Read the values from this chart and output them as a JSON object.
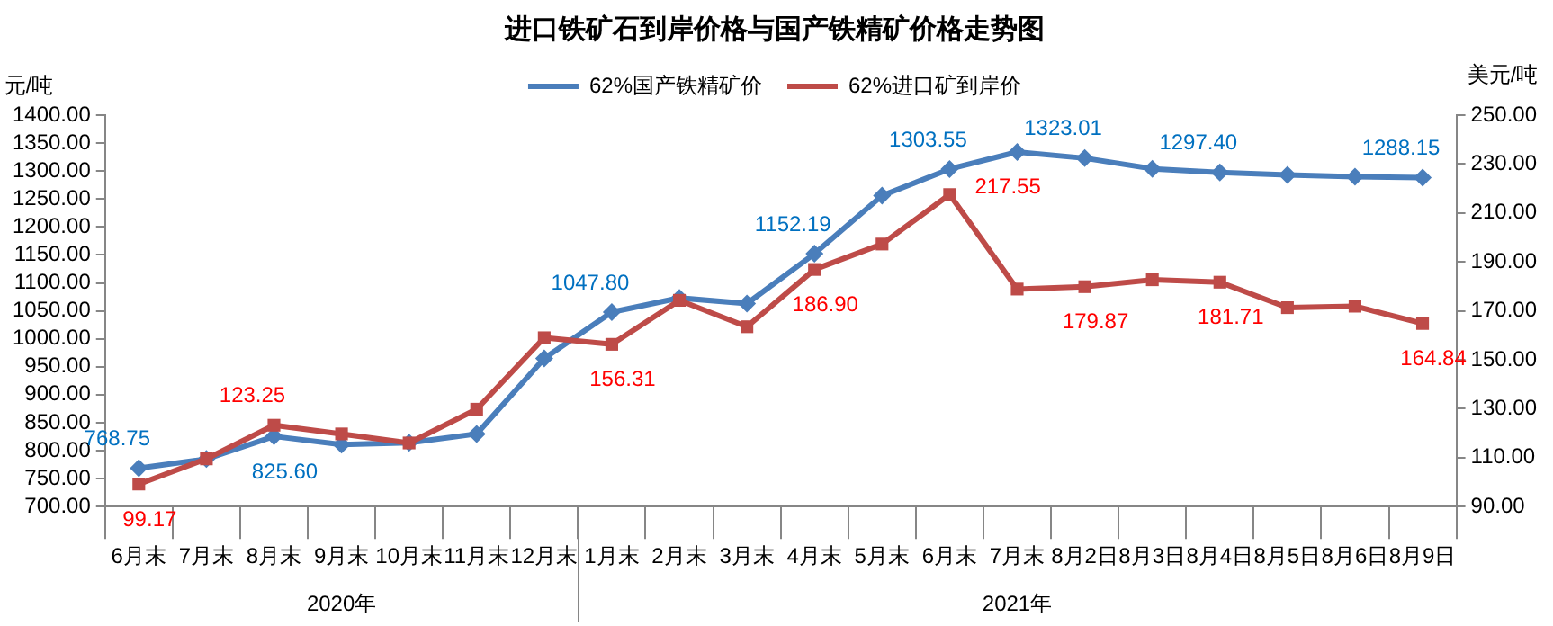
{
  "chart_data": {
    "type": "line",
    "title": "进口铁矿石到岸价格与国产铁精矿价格走势图",
    "ylabel": "元/吨",
    "y2label": "美元/吨",
    "categories": [
      "6月末",
      "7月末",
      "8月末",
      "9月末",
      "10月末",
      "11月末",
      "12月末",
      "1月末",
      "2月末",
      "3月末",
      "4月末",
      "5月末",
      "6月末",
      "7月末",
      "8月2日",
      "8月3日",
      "8月4日",
      "8月5日",
      "8月6日",
      "8月9日"
    ],
    "annotations": [
      "2020年",
      "2021年"
    ],
    "series": [
      {
        "name": "62%国产铁精矿价",
        "color": "#4a7ebb",
        "marker": "diamond",
        "values": [
          768.75,
          785,
          825.6,
          811,
          814,
          830,
          965,
          1047.8,
          1073,
          1063,
          1152.19,
          1256,
          1303.55,
          1334,
          1323.01,
          1304,
          1297.4,
          1293,
          1290,
          1288.15
        ],
        "value_labels": [
          "768.75",
          null,
          "825.60",
          null,
          null,
          null,
          null,
          "1047.80",
          null,
          null,
          "1152.19",
          null,
          "1303.55",
          null,
          "1323.01",
          null,
          "1297.40",
          null,
          null,
          "1288.15"
        ]
      },
      {
        "name": "62%进口矿到岸价",
        "color": "#be4b48",
        "marker": "square",
        "axis": "y2",
        "values": [
          99.17,
          109.5,
          123.25,
          119.7,
          116,
          129.8,
          159,
          156.31,
          174.3,
          163.5,
          186.9,
          197.3,
          217.55,
          178.9,
          179.87,
          182.7,
          181.71,
          171.3,
          171.9,
          164.84
        ],
        "value_labels": [
          "99.17",
          null,
          "123.25",
          null,
          null,
          null,
          null,
          "156.31",
          null,
          null,
          "186.90",
          null,
          "217.55",
          null,
          "179.87",
          null,
          "181.71",
          null,
          null,
          "164.84"
        ]
      }
    ],
    "ylim": [
      700,
      1400
    ],
    "yticks": [
      {
        "value": 700,
        "label": "700.00"
      },
      {
        "value": 750,
        "label": "750.00"
      },
      {
        "value": 800,
        "label": "800.00"
      },
      {
        "value": 850,
        "label": "850.00"
      },
      {
        "value": 900,
        "label": "900.00"
      },
      {
        "value": 950,
        "label": "950.00"
      },
      {
        "value": 1000,
        "label": "1000.00"
      },
      {
        "value": 1050,
        "label": "1050.00"
      },
      {
        "value": 1100,
        "label": "1100.00"
      },
      {
        "value": 1150,
        "label": "1150.00"
      },
      {
        "value": 1200,
        "label": "1200.00"
      },
      {
        "value": 1250,
        "label": "1250.00"
      },
      {
        "value": 1300,
        "label": "1300.00"
      },
      {
        "value": 1350,
        "label": "1350.00"
      },
      {
        "value": 1400,
        "label": "1400.00"
      }
    ],
    "y2lim": [
      90,
      250
    ],
    "y2ticks": [
      {
        "value": 90,
        "label": "90.00"
      },
      {
        "value": 110,
        "label": "110.00"
      },
      {
        "value": 130,
        "label": "130.00"
      },
      {
        "value": 150,
        "label": "150.00"
      },
      {
        "value": 170,
        "label": "170.00"
      },
      {
        "value": 190,
        "label": "190.00"
      },
      {
        "value": 210,
        "label": "210.00"
      },
      {
        "value": 230,
        "label": "230.00"
      },
      {
        "value": 250,
        "label": "250.00"
      }
    ],
    "grid": false,
    "legend": "top",
    "line_style": "solid"
  }
}
